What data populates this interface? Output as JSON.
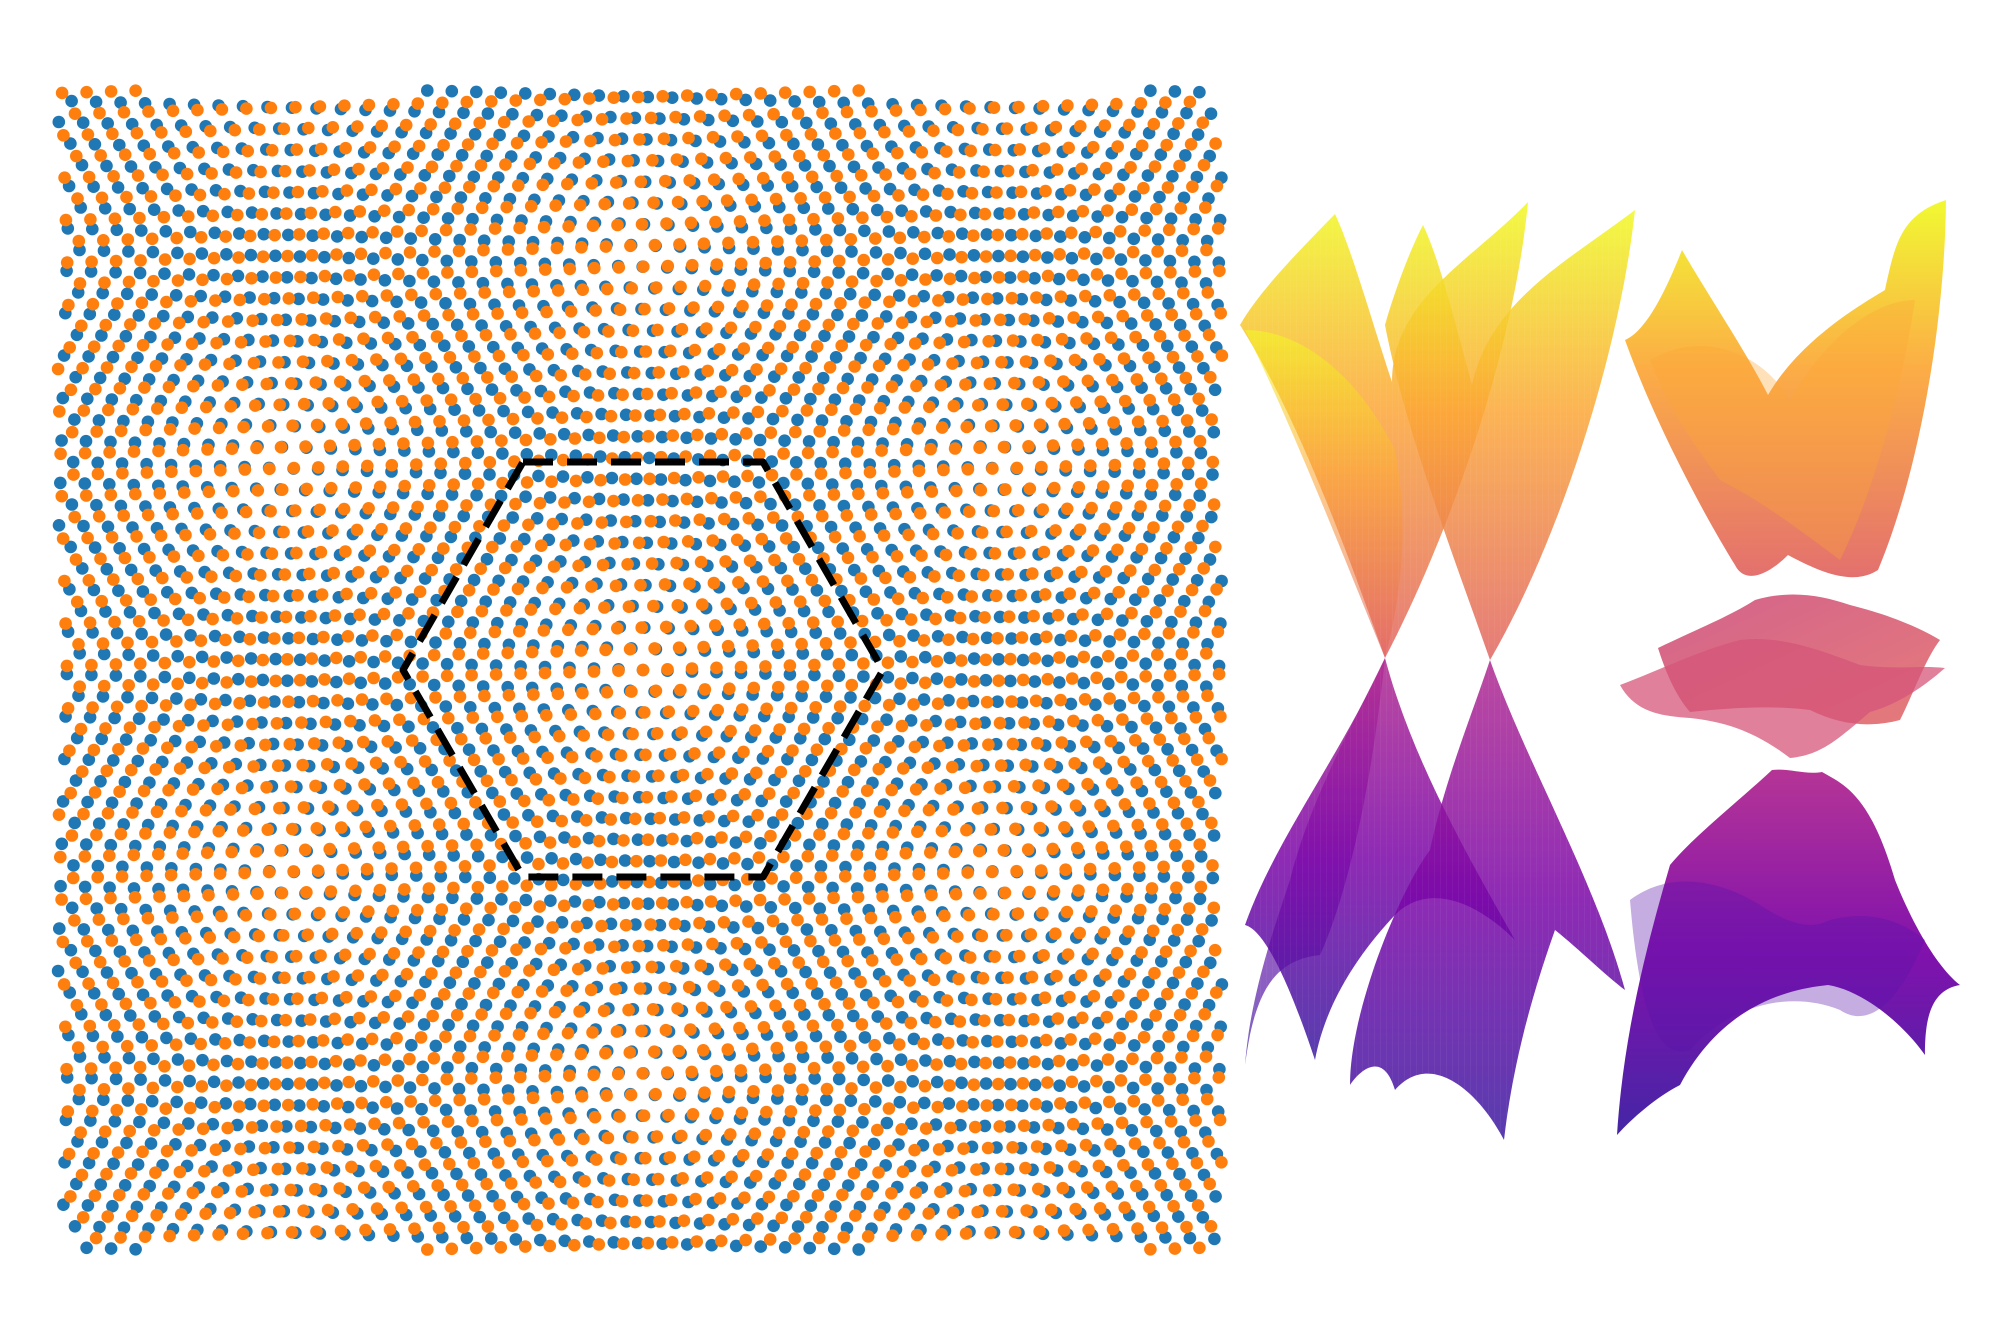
{
  "figure": {
    "panels": [
      {
        "name": "moire-lattice",
        "layers": [
          {
            "name": "layer-1",
            "color": "#1f77b4"
          },
          {
            "name": "layer-2",
            "color": "#ff7f0e"
          }
        ],
        "supercell_outline": {
          "shape": "hexagon",
          "style": "dashed",
          "color": "#000000"
        }
      },
      {
        "name": "band-structure-dirac-cones",
        "colormap": [
          "#0d0887",
          "#6a00a8",
          "#b12a90",
          "#e16462",
          "#fca636",
          "#f0f921"
        ]
      },
      {
        "name": "band-structure-flat-bands",
        "colormap": [
          "#0d0887",
          "#6a00a8",
          "#b12a90",
          "#e16462",
          "#fca636",
          "#f0f921"
        ]
      }
    ]
  }
}
